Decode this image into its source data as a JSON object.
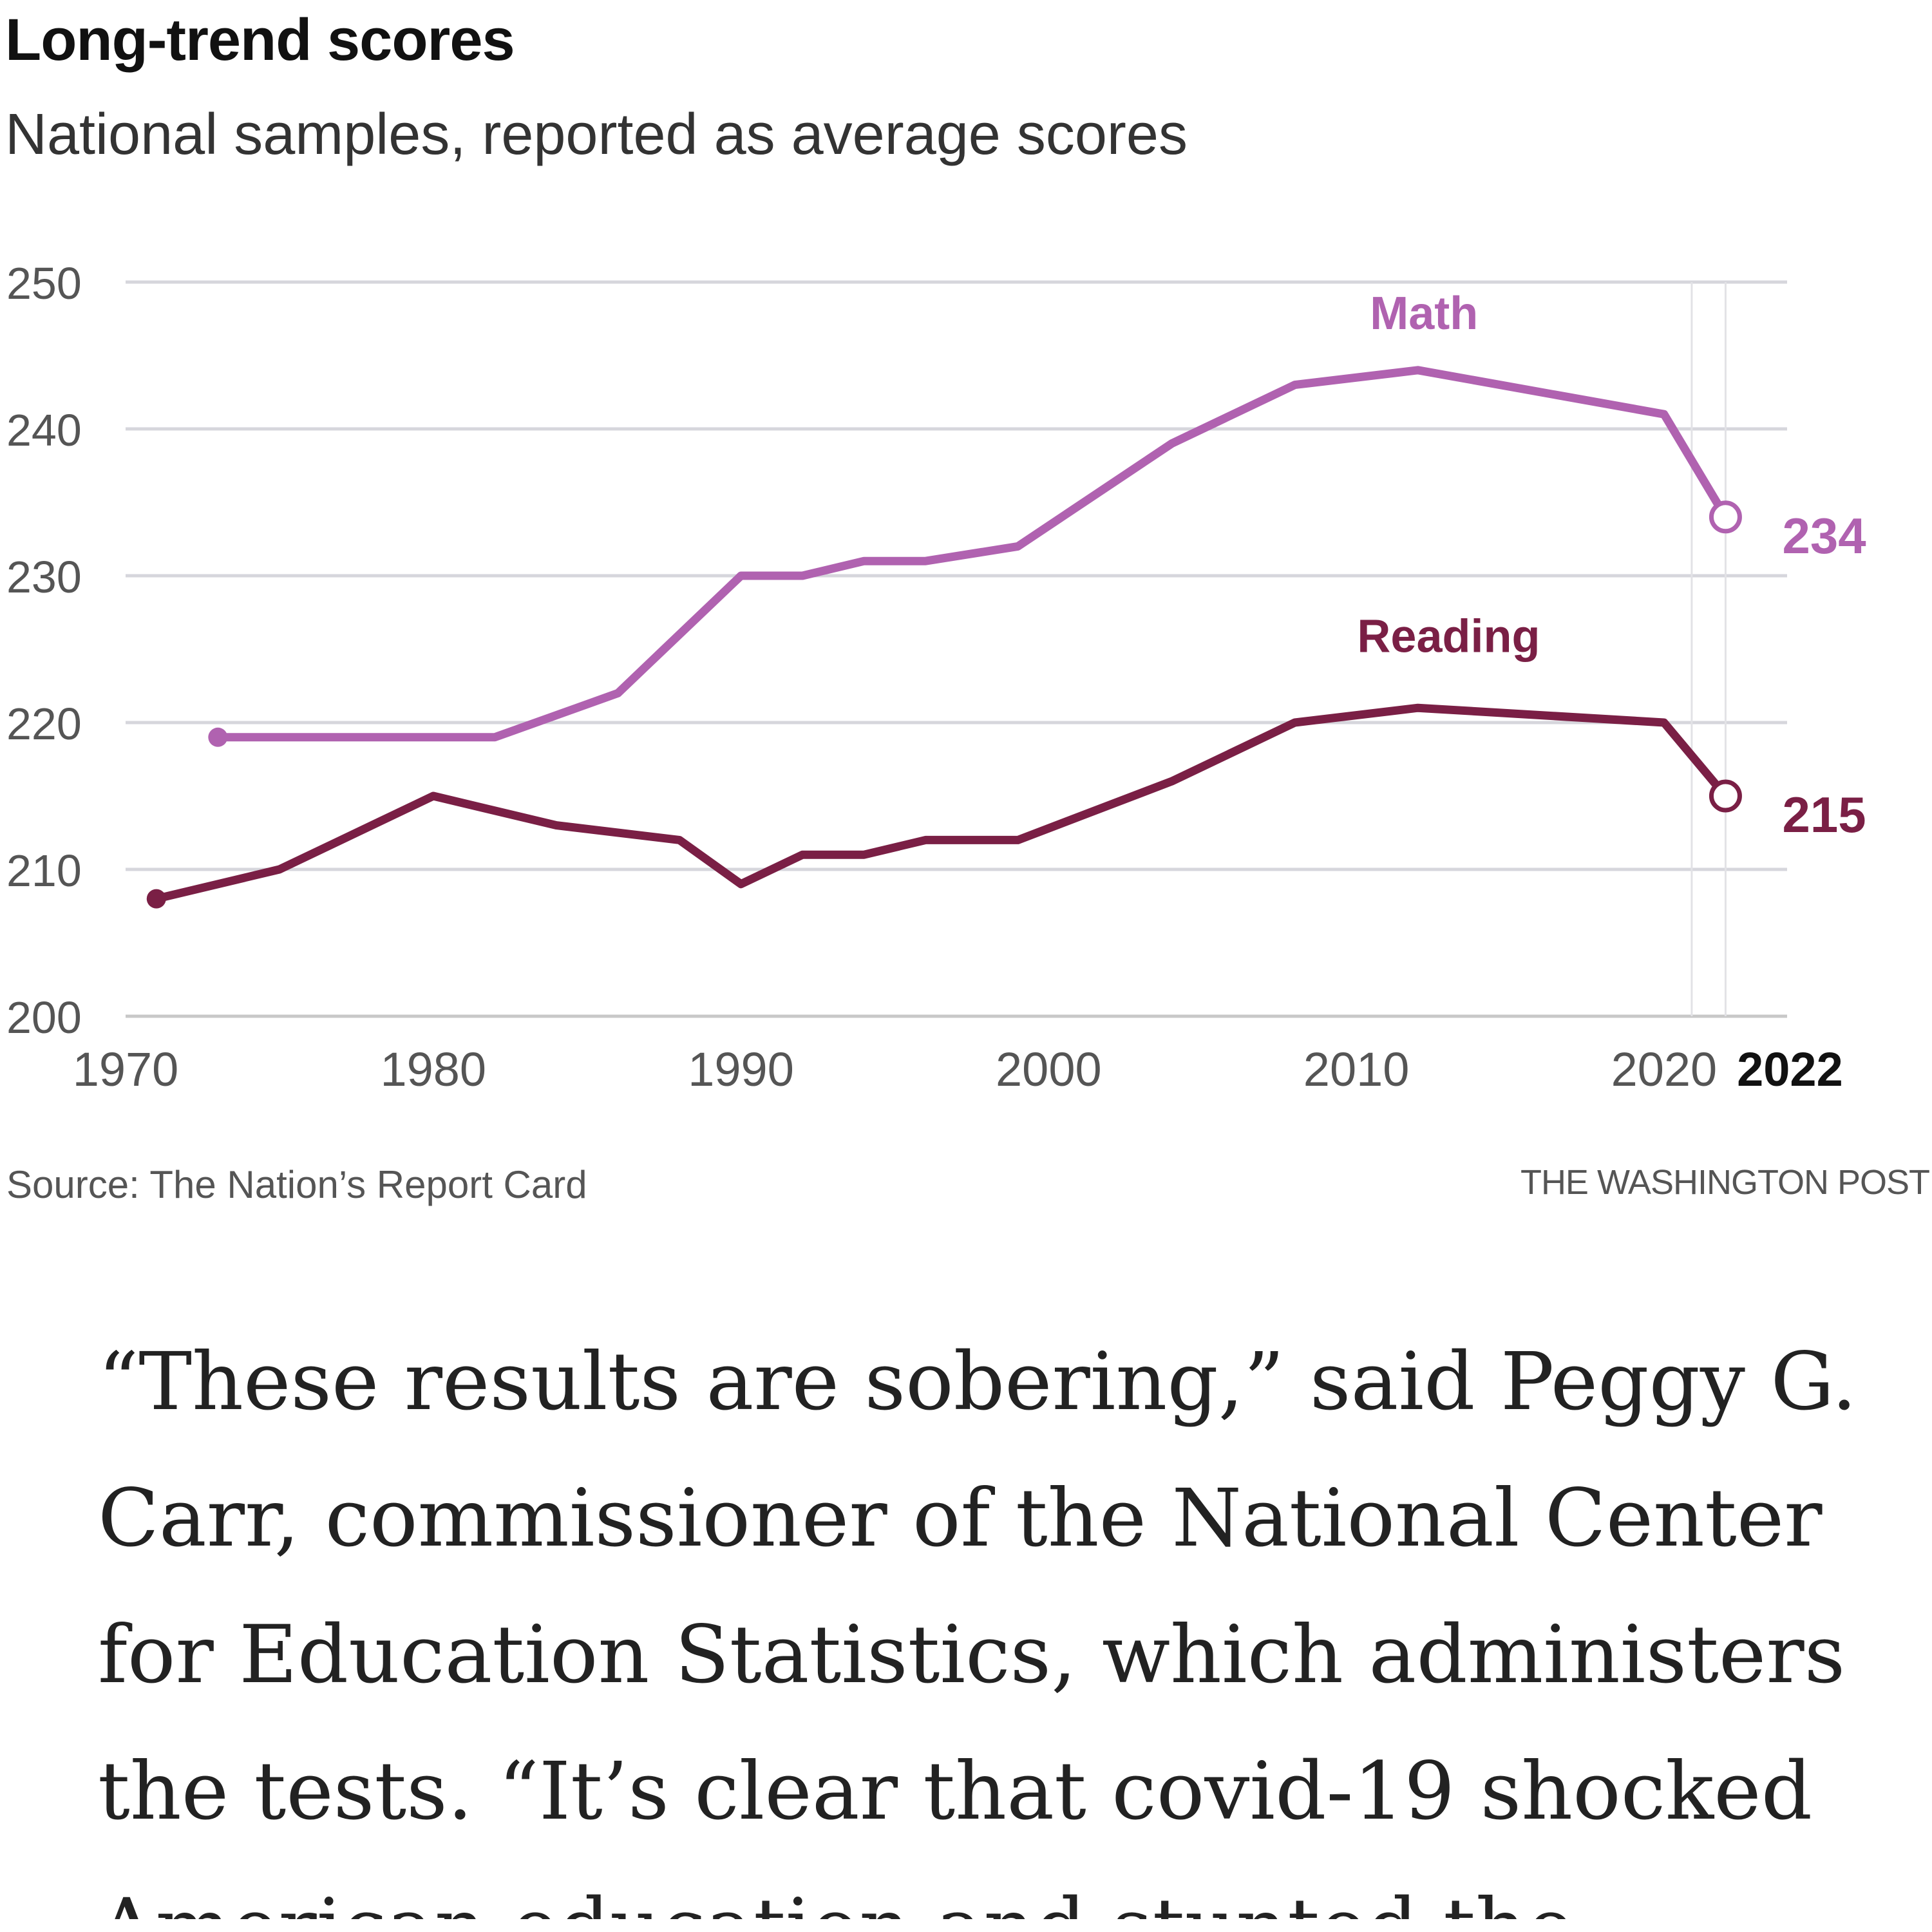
{
  "chart_data": {
    "type": "line",
    "title": "Long-trend scores",
    "subtitle": "National samples, reported as average scores",
    "xlabel": "",
    "ylabel": "",
    "xlim": [
      1970,
      2024
    ],
    "ylim": [
      200,
      250
    ],
    "x_ticks": [
      "1970",
      "1980",
      "1990",
      "2000",
      "2010",
      "2020",
      "2022"
    ],
    "x_tick_values": [
      1970,
      1980,
      1990,
      2000,
      2010,
      2020,
      2022
    ],
    "y_ticks": [
      200,
      210,
      220,
      230,
      240,
      250
    ],
    "grid": true,
    "series": [
      {
        "name": "Math",
        "color": "#b062b0",
        "x": [
          1973,
          1978,
          1982,
          1986,
          1990,
          1992,
          1994,
          1996,
          1999,
          2004,
          2008,
          2012,
          2020,
          2022
        ],
        "values": [
          219,
          219,
          219,
          222,
          230,
          230,
          231,
          231,
          232,
          239,
          243,
          244,
          241,
          234
        ],
        "end_label": "234"
      },
      {
        "name": "Reading",
        "color": "#7a1f45",
        "x": [
          1971,
          1975,
          1980,
          1984,
          1988,
          1990,
          1992,
          1994,
          1996,
          1999,
          2004,
          2008,
          2012,
          2020,
          2022
        ],
        "values": [
          208,
          210,
          215,
          213,
          212,
          209,
          211,
          211,
          212,
          212,
          216,
          220,
          221,
          220,
          215
        ],
        "end_label": "215"
      }
    ]
  },
  "footer": {
    "source": "Source: The Nation’s Report Card",
    "credit": "THE WASHINGTON POST"
  },
  "article": {
    "paragraph": "“These results are sobering,” said Peggy G. Carr, commissioner of the National Center for Education Statistics, which administers the tests. “It’s clear that covid-19 shocked American education and stunted the"
  }
}
